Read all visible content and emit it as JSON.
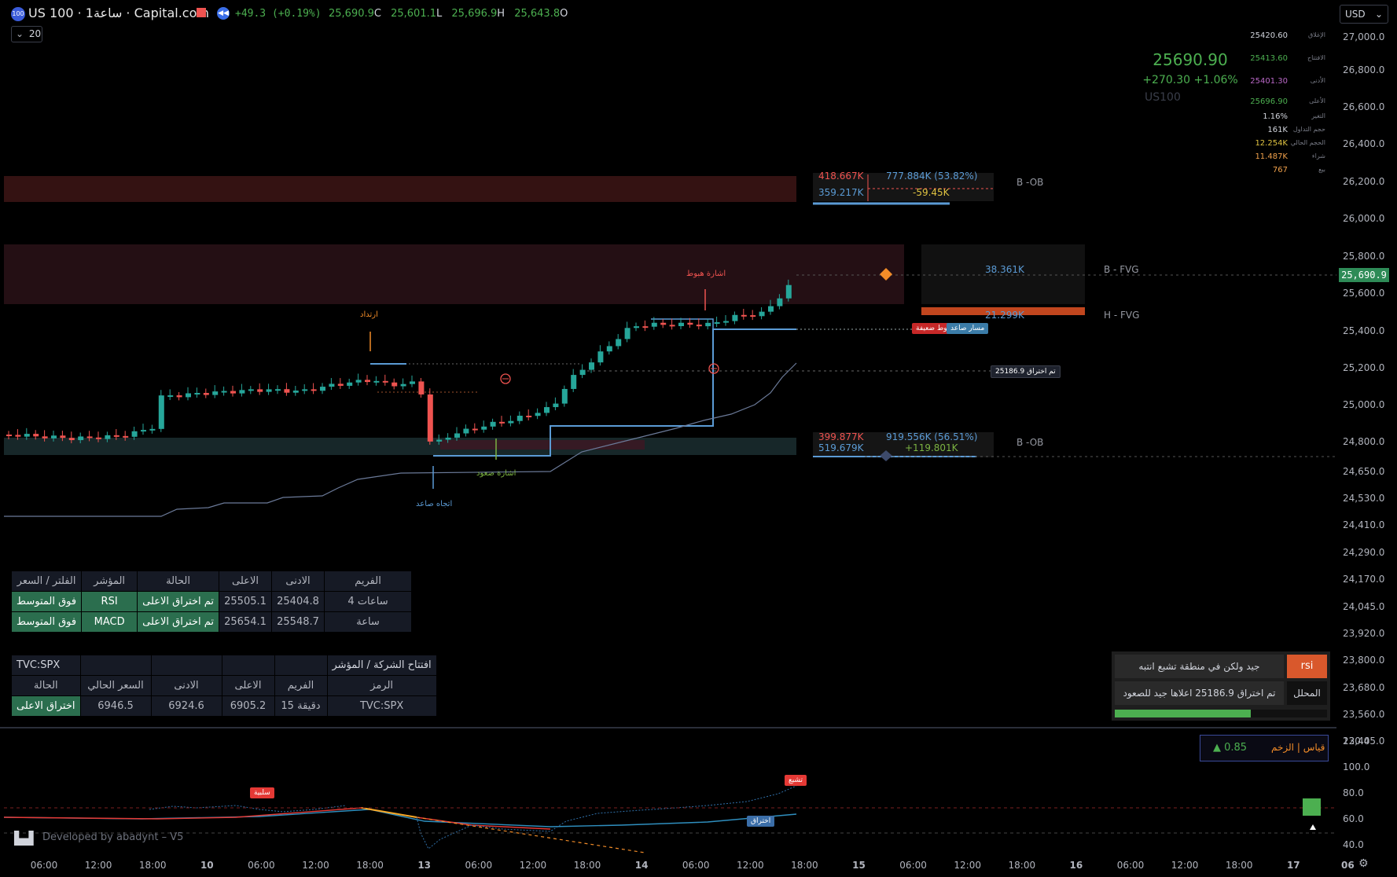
{
  "header": {
    "badge": "100",
    "title": "US 100 · 1ساعة · Capital.com",
    "change": "+49.3 (+0.19%)",
    "ohlc": [
      {
        "value": "25,690.9",
        "key": "C"
      },
      {
        "value": "25,601.1",
        "key": "L"
      },
      {
        "value": "25,696.9",
        "key": "H"
      },
      {
        "value": "25,643.8",
        "key": "O"
      }
    ],
    "indicator_count": "20",
    "currency": "USD"
  },
  "price_axis": {
    "ticks": [
      "27,000.0",
      "26,800.0",
      "26,600.0",
      "26,400.0",
      "26,200.0",
      "26,000.0",
      "25,800.0",
      "25,600.0",
      "25,400.0",
      "25,200.0",
      "25,000.0",
      "24,800.0",
      "24,650.0",
      "24,530.0",
      "24,410.0",
      "24,290.0",
      "24,170.0",
      "24,045.0",
      "23,920.0",
      "23,800.0",
      "23,680.0",
      "23,560.0",
      "23,445.0"
    ],
    "last_price_label": "25,690.9"
  },
  "osc_axis": {
    "ticks": [
      "120.0",
      "100.0",
      "80.0",
      "60.0",
      "40.0"
    ]
  },
  "time_axis": {
    "labels": [
      "06:00",
      "12:00",
      "18:00",
      "10",
      "06:00",
      "12:00",
      "18:00",
      "13",
      "06:00",
      "12:00",
      "18:00",
      "14",
      "06:00",
      "12:00",
      "18:00",
      "15",
      "06:00",
      "12:00",
      "18:00",
      "16",
      "06:00",
      "12:00",
      "18:00",
      "17",
      "06"
    ]
  },
  "price_panel": {
    "price": "25690.90",
    "change": "+270.30 +1.06%",
    "symbol": "US100",
    "rows": [
      {
        "label": "الإغلاق",
        "value": "25420.60",
        "color": "#d1d4dc"
      },
      {
        "label": "الافتتاح",
        "value": "25413.60",
        "color": "#4caf50"
      },
      {
        "label": "الأدنى",
        "value": "25401.30",
        "color": "#ba68c8"
      },
      {
        "label": "الأعلى",
        "value": "25696.90",
        "color": "#4caf50"
      },
      {
        "label": "التغير",
        "value": "1.16%",
        "color": "#d1d4dc"
      },
      {
        "label": "حجم التداول",
        "value": "161K",
        "color": "#d1d4dc"
      },
      {
        "label": "الحجم الحالي",
        "value": "12.254K",
        "color": "#e0c341"
      },
      {
        "label": "شراء",
        "value": "11.487K",
        "color": "#f0a04b"
      },
      {
        "label": "بيع",
        "value": "767",
        "color": "#f0a04b"
      }
    ]
  },
  "chart_labels": {
    "ob_top": {
      "sell": "418.667K",
      "total": "777.884K (53.82%)",
      "buy": "359.217K",
      "delta": "-59.45K",
      "tag": "B -OB"
    },
    "ob_bottom": {
      "sell": "399.877K",
      "total": "919.556K (56.51%)",
      "buy": "519.679K",
      "delta": "+119.801K",
      "tag": "B -OB"
    },
    "fvg_b": {
      "value": "38.361K",
      "tag": "B - FVG"
    },
    "fvg_h": {
      "value": "21.299K",
      "tag": "H - FVG"
    },
    "sell_signal": "اشارة هبوط",
    "rebound": "ارتداد",
    "buy_signal": "اشارة صعود",
    "trend_up": "اتجاه صاعد",
    "weak_down": "هبوط ضعيفة",
    "trend_path": "مسار صاعد",
    "breakout_level": "25186.9",
    "breakout_label": "تم اختراق"
  },
  "table_frames": {
    "headers": [
      "الفلتر / السعر",
      "المؤشر",
      "الحالة",
      "الاعلى",
      "الادنى",
      "الفريم"
    ],
    "rows": [
      [
        "فوق المتوسط",
        "RSI",
        "تم اختراق الاعلى",
        "25505.1",
        "25404.8",
        "4 ساعات"
      ],
      [
        "فوق المتوسط",
        "MACD",
        "تم اختراق الاعلى",
        "25654.1",
        "25548.7",
        "ساعة"
      ]
    ]
  },
  "table_index": {
    "title_left": "TVC:SPX",
    "title_right": "افتتاح الشركة / المؤشر",
    "headers": [
      "الحالة",
      "السعر الحالي",
      "الادنى",
      "الاعلى",
      "الفريم",
      "الرمز"
    ],
    "row": [
      "اختراق الاعلى",
      "6946.5",
      "6924.6",
      "6905.2",
      "15 دقيقة",
      "TVC:SPX"
    ]
  },
  "analysis_panel": {
    "rsi_label": "rsi",
    "rsi_text": "جيد ولكن في منطقة تشبع انتبه",
    "analyst_label": "المحلل",
    "analyst_text": "تم اختراق 25186.9 اعلاها جيد للصعود",
    "progress": 0.64
  },
  "momentum": {
    "label": "قياس | الزخم",
    "value": "▲ 0.85"
  },
  "oscillator": {
    "negative_tag": "سلبية",
    "overbought_tag": "تشبع",
    "breakout_tag": "اختراق",
    "watermark": "Developed by abadynt – V5"
  },
  "colors": {
    "bull": "#26a69a",
    "bear": "#ef5350",
    "accent_blue": "#5b9bd5",
    "orange": "#f28c28",
    "green_cell": "#2b6e4e"
  }
}
